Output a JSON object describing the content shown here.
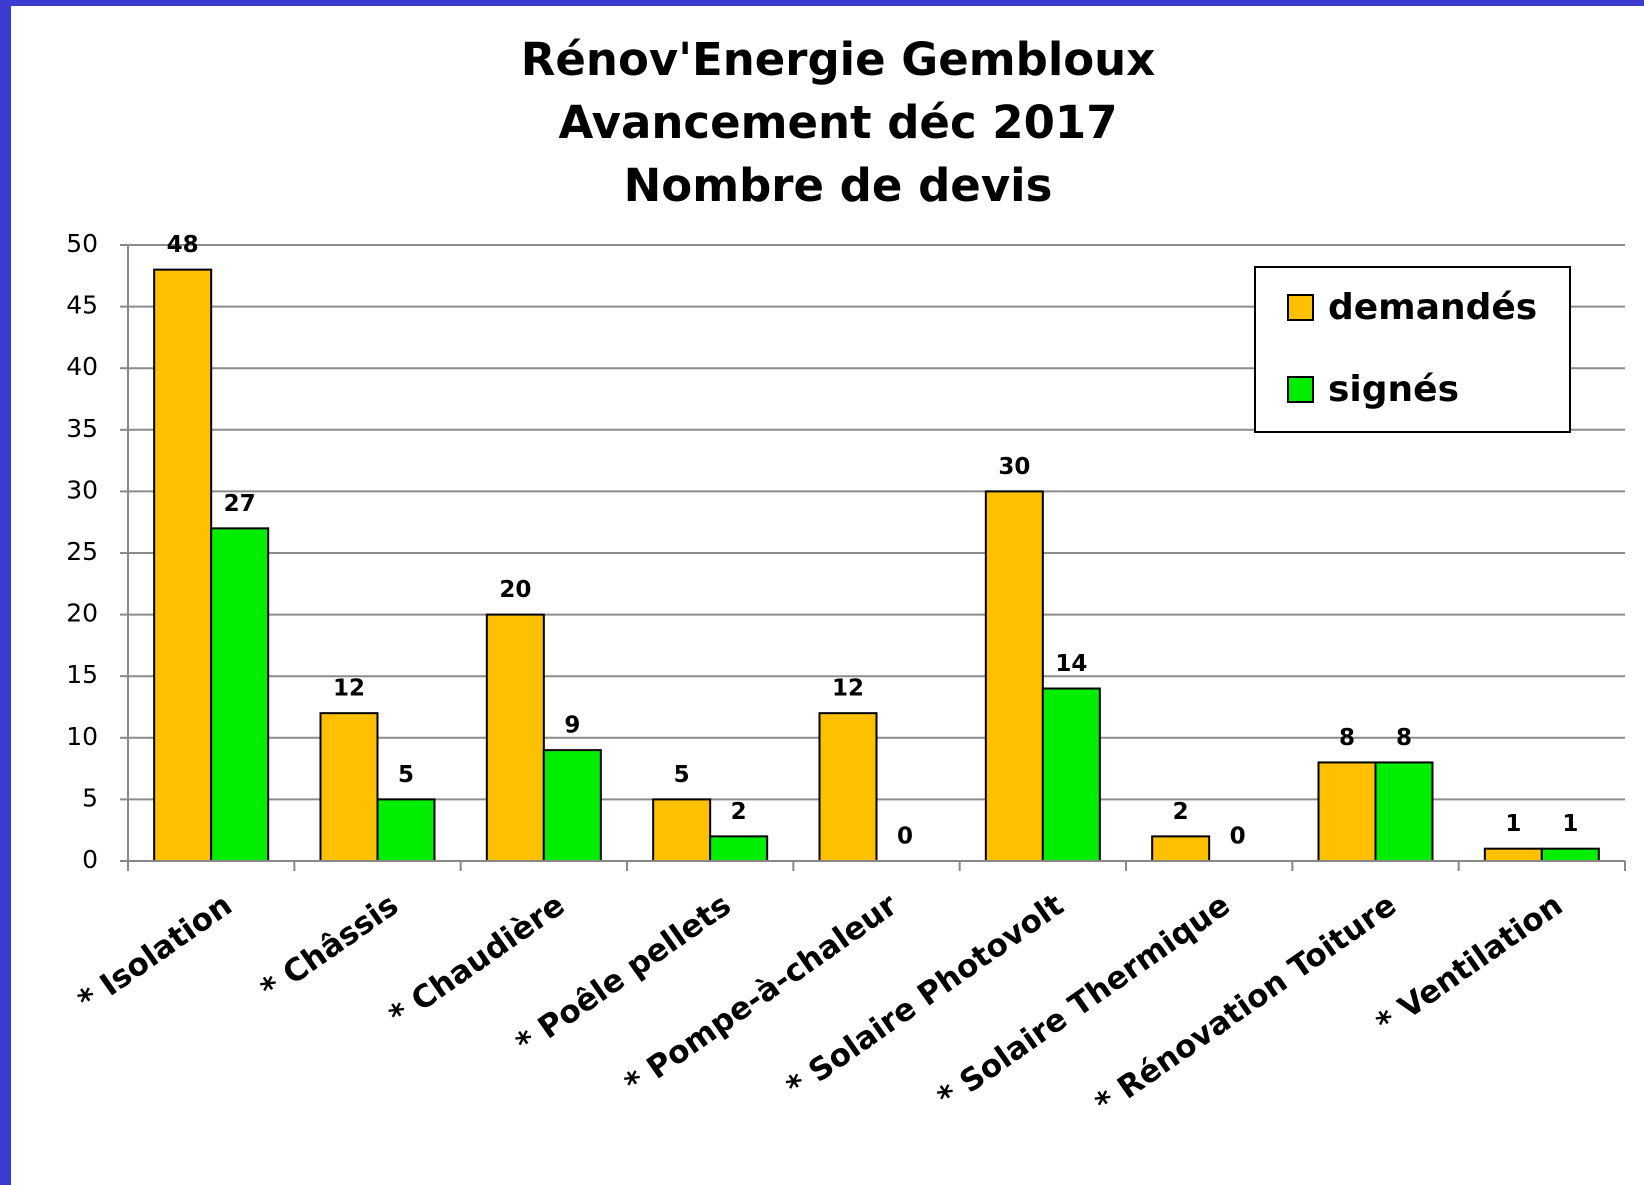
{
  "chart_data": {
    "type": "bar",
    "title": [
      "Rénov'Energie Gembloux",
      "Avancement déc 2017",
      "Nombre de devis"
    ],
    "categories": [
      "* Isolation",
      "* Châssis",
      "* Chaudière",
      "* Poêle pellets",
      "* Pompe-à-chaleur",
      "* Solaire Photovolt",
      "* Solaire Thermique",
      "* Rénovation Toiture",
      "* Ventilation"
    ],
    "series": [
      {
        "name": "demandés",
        "color": "#ffc000",
        "values": [
          48,
          12,
          20,
          5,
          12,
          30,
          2,
          8,
          1
        ]
      },
      {
        "name": "signés",
        "color": "#00ee00",
        "values": [
          27,
          5,
          9,
          2,
          0,
          14,
          0,
          8,
          1
        ]
      }
    ],
    "ylim": [
      0,
      50
    ],
    "yticks": [
      0,
      5,
      10,
      15,
      20,
      25,
      30,
      35,
      40,
      45,
      50
    ],
    "grid": true,
    "legend": "top-right"
  }
}
